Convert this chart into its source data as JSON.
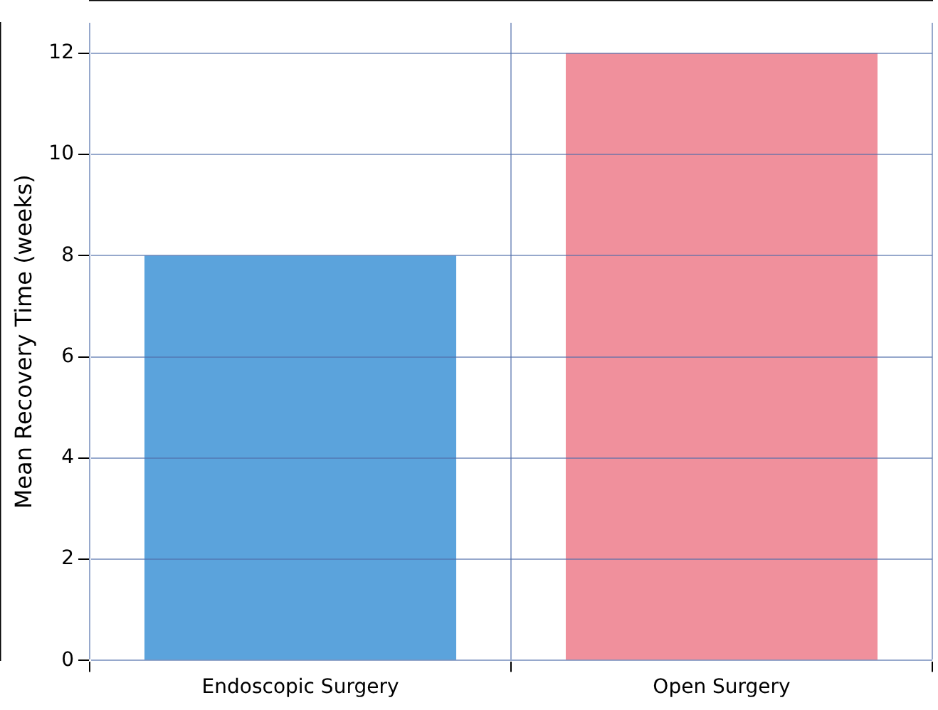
{
  "chart_data": {
    "type": "bar",
    "ylabel": "Mean Recovery Time (weeks)",
    "categories": [
      "Endoscopic Surgery",
      "Open Surgery"
    ],
    "values": [
      8,
      12
    ],
    "colors": [
      "#5ba3dc",
      "#f0909c"
    ],
    "ylim": [
      0,
      12.6
    ],
    "yticks": [
      0,
      2,
      4,
      6,
      8,
      10,
      12
    ],
    "grid": true
  }
}
